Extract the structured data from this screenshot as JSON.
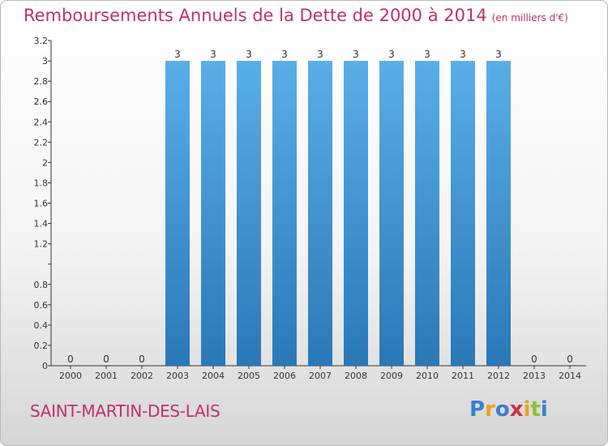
{
  "header": {
    "title": "Remboursements Annuels de la Dette de 2000 à 2014",
    "unit": "(en milliers d'€)"
  },
  "footer": {
    "commune": "SAINT-MARTIN-DES-LAIS",
    "logo_text": "Proxiti",
    "logo_letters": [
      {
        "ch": "P",
        "color": "#3a7fd0"
      },
      {
        "ch": "r",
        "color": "#e8a21e"
      },
      {
        "ch": "o",
        "color": "#3a7fd0"
      },
      {
        "ch": "x",
        "color": "#d0304a"
      },
      {
        "ch": "i",
        "color": "#e8a21e"
      },
      {
        "ch": "t",
        "color": "#8ac23a"
      },
      {
        "ch": "i",
        "color": "#3a7fd0"
      }
    ]
  },
  "colors": {
    "title": "#c0306a",
    "bar_top": "#5aaee8",
    "bar_bottom": "#2a78b8",
    "axis": "#333333"
  },
  "chart_data": {
    "type": "bar",
    "categories": [
      "2000",
      "2001",
      "2002",
      "2003",
      "2004",
      "2005",
      "2006",
      "2007",
      "2008",
      "2009",
      "2010",
      "2011",
      "2012",
      "2013",
      "2014"
    ],
    "values": [
      0,
      0,
      0,
      3,
      3,
      3,
      3,
      3,
      3,
      3,
      3,
      3,
      3,
      0,
      0
    ],
    "data_labels": [
      "0",
      "0",
      "0",
      "3",
      "3",
      "3",
      "3",
      "3",
      "3",
      "3",
      "3",
      "3",
      "3",
      "0",
      "0"
    ],
    "ylim": [
      0,
      3.2
    ],
    "yticks": [
      "0",
      "0.2",
      "0.4",
      "0.6",
      "0.8",
      "",
      "1.2",
      "1.4",
      "1.6",
      "1.8",
      "2",
      "2.2",
      "2.4",
      "2.6",
      "2.8",
      "3",
      "3.2"
    ],
    "ytick_values": [
      0,
      0.2,
      0.4,
      0.6,
      0.8,
      1,
      1.2,
      1.4,
      1.6,
      1.8,
      2,
      2.2,
      2.4,
      2.6,
      2.8,
      3,
      3.2
    ],
    "grid": false,
    "legend": "none"
  }
}
